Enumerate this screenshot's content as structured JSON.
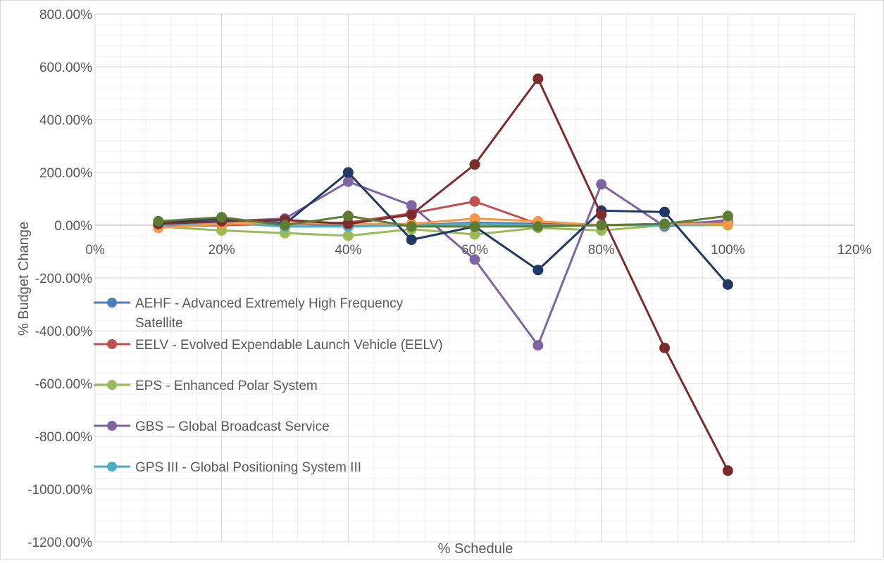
{
  "chart_data": {
    "type": "line",
    "xlabel": "% Schedule",
    "ylabel": "% Budget Change",
    "xlim": [
      0,
      120
    ],
    "ylim": [
      -1200,
      800
    ],
    "x_tick_labels": [
      "0%",
      "20%",
      "40%",
      "60%",
      "80%",
      "100%",
      "120%"
    ],
    "y_tick_labels": [
      "800.00%",
      "600.00%",
      "400.00%",
      "200.00%",
      "0.00%",
      "-200.00%",
      "-400.00%",
      "-600.00%",
      "-800.00%",
      "-1000.00%",
      "-1200.00%"
    ],
    "grid": true,
    "legend_position": "left",
    "x": [
      10,
      20,
      30,
      40,
      50,
      60,
      70,
      80,
      90,
      100
    ],
    "series": [
      {
        "name": "AEHF - Advanced Extremely High Frequency Satellite",
        "legend_lines": [
          "AEHF - Advanced Extremely High Frequency",
          "Satellite"
        ],
        "color": "#4a7ebb",
        "in_legend": true,
        "values": [
          5,
          20,
          10,
          -5,
          0,
          10,
          5,
          0,
          5,
          15
        ]
      },
      {
        "name": "EELV - Evolved Expendable Launch Vehicle (EELV)",
        "legend_lines": [
          "EELV - Evolved Expendable Launch Vehicle (EELV)"
        ],
        "color": "#c0504d",
        "in_legend": true,
        "values": [
          -5,
          0,
          5,
          10,
          45,
          90,
          5,
          0,
          5,
          10
        ]
      },
      {
        "name": "EPS - Enhanced Polar System",
        "legend_lines": [
          "EPS - Enhanced Polar System"
        ],
        "color": "#9bbb59",
        "in_legend": true,
        "values": [
          -5,
          -20,
          -30,
          -40,
          -15,
          -35,
          -10,
          -20,
          0,
          0
        ]
      },
      {
        "name": "GBS – Global Broadcast Service",
        "legend_lines": [
          "GBS – Global Broadcast Service"
        ],
        "color": "#8064a2",
        "in_legend": true,
        "values": [
          5,
          15,
          25,
          165,
          75,
          -130,
          -455,
          155,
          -5,
          20
        ]
      },
      {
        "name": "GPS III - Global Positioning System III",
        "legend_lines": [
          "GPS III - Global Positioning System III"
        ],
        "color": "#4bacc6",
        "in_legend": true,
        "values": [
          0,
          10,
          -5,
          -5,
          0,
          5,
          0,
          0,
          0,
          5
        ]
      },
      {
        "name": "",
        "color": "#f79646",
        "in_legend": false,
        "values": [
          -10,
          5,
          10,
          5,
          5,
          25,
          15,
          0,
          5,
          5
        ]
      },
      {
        "name": "",
        "color": "#1f3864",
        "in_legend": false,
        "values": [
          10,
          25,
          5,
          200,
          -55,
          -5,
          -170,
          55,
          50,
          -225
        ]
      },
      {
        "name": "",
        "color": "#7b2c2c",
        "in_legend": false,
        "values": [
          5,
          15,
          20,
          5,
          40,
          230,
          555,
          40,
          -465,
          -930
        ]
      },
      {
        "name": "",
        "color": "#5e7d34",
        "in_legend": false,
        "values": [
          15,
          30,
          0,
          35,
          -5,
          -5,
          -5,
          0,
          5,
          35
        ]
      }
    ]
  }
}
